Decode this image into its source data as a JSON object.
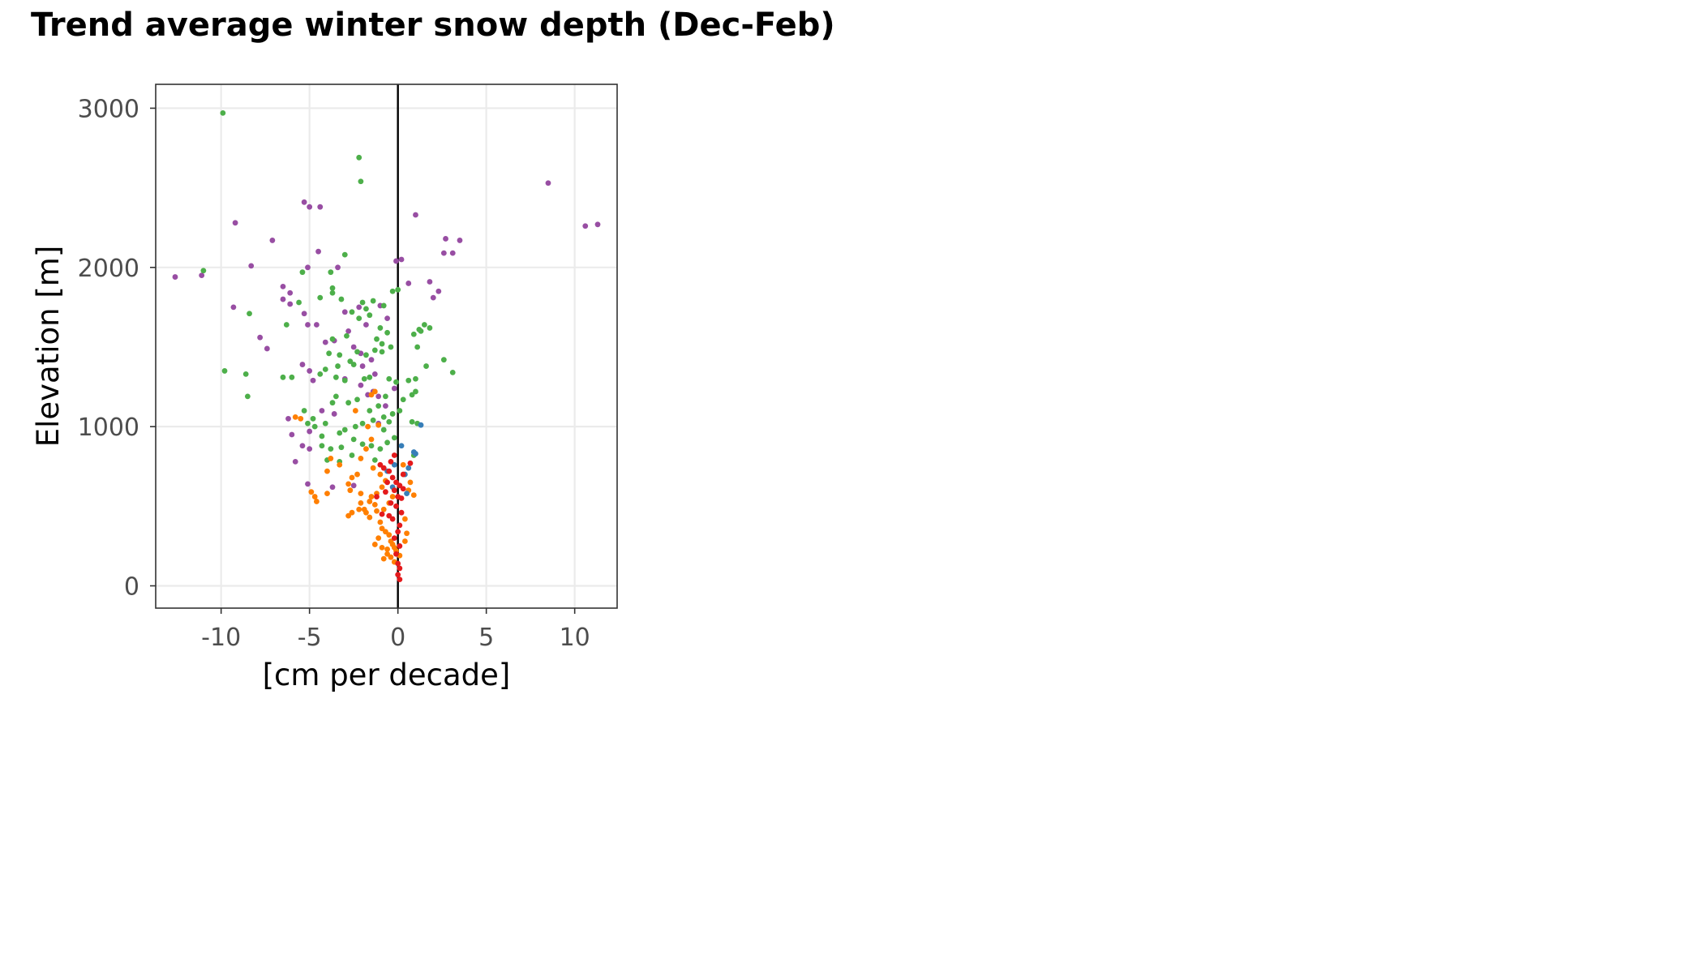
{
  "chart_data": {
    "type": "scatter",
    "title": "Trend average winter snow depth (Dec-Feb)",
    "xlabel": "[cm per decade]",
    "ylabel": "Elevation [m]",
    "xlim": [
      -13.7,
      12.4
    ],
    "ylim": [
      -140,
      3150
    ],
    "xticks": [
      -10,
      -5,
      0,
      5,
      10
    ],
    "yticks": [
      0,
      1000,
      2000,
      3000
    ],
    "grid": true,
    "legend": "none",
    "reference_line_x": 0,
    "series": [
      {
        "color": "#984ea3",
        "points": [
          [
            -12.6,
            1940
          ],
          [
            -11.1,
            1950
          ],
          [
            -9.2,
            2280
          ],
          [
            -7.1,
            2170
          ],
          [
            -5.3,
            2410
          ],
          [
            -5.0,
            2380
          ],
          [
            -4.4,
            2380
          ],
          [
            -4.5,
            2100
          ],
          [
            -3.4,
            2000
          ],
          [
            -5.1,
            2000
          ],
          [
            -8.3,
            2010
          ],
          [
            -9.3,
            1750
          ],
          [
            -7.8,
            1560
          ],
          [
            -7.4,
            1490
          ],
          [
            -6.5,
            1880
          ],
          [
            -6.1,
            1840
          ],
          [
            -6.5,
            1800
          ],
          [
            -6.1,
            1770
          ],
          [
            -5.3,
            1710
          ],
          [
            -5.1,
            1640
          ],
          [
            -4.6,
            1640
          ],
          [
            -4.1,
            1530
          ],
          [
            -2.8,
            1600
          ],
          [
            -3.0,
            1720
          ],
          [
            -2.2,
            1750
          ],
          [
            -1.8,
            1640
          ],
          [
            -3.6,
            1540
          ],
          [
            -2.5,
            1500
          ],
          [
            -2.1,
            1460
          ],
          [
            -1.5,
            1420
          ],
          [
            -1.0,
            1760
          ],
          [
            -0.6,
            1680
          ],
          [
            -0.1,
            2040
          ],
          [
            0.2,
            2050
          ],
          [
            1.0,
            2330
          ],
          [
            2.7,
            2180
          ],
          [
            3.5,
            2170
          ],
          [
            2.6,
            2090
          ],
          [
            3.1,
            2090
          ],
          [
            1.8,
            1910
          ],
          [
            2.3,
            1850
          ],
          [
            2.0,
            1810
          ],
          [
            0.6,
            1900
          ],
          [
            8.5,
            2530
          ],
          [
            10.6,
            2260
          ],
          [
            11.3,
            2270
          ],
          [
            -5.4,
            1390
          ],
          [
            -5.0,
            1350
          ],
          [
            -4.8,
            1290
          ],
          [
            -3.0,
            1300
          ],
          [
            -2.1,
            1260
          ],
          [
            -1.4,
            1220
          ],
          [
            -1.1,
            1190
          ],
          [
            -0.2,
            1240
          ],
          [
            -0.7,
            1130
          ],
          [
            -4.3,
            1100
          ],
          [
            -3.6,
            1080
          ],
          [
            -5.0,
            970
          ],
          [
            -6.0,
            950
          ],
          [
            -5.4,
            880
          ],
          [
            -5.0,
            860
          ],
          [
            -5.8,
            780
          ],
          [
            -5.1,
            640
          ],
          [
            -3.7,
            620
          ],
          [
            -2.5,
            630
          ],
          [
            -1.7,
            1200
          ],
          [
            -1.1,
            1020
          ],
          [
            -6.2,
            1050
          ],
          [
            -2.0,
            1380
          ],
          [
            -1.3,
            1330
          ]
        ]
      },
      {
        "color": "#4daf4a",
        "points": [
          [
            -9.9,
            2970
          ],
          [
            -2.2,
            2690
          ],
          [
            -2.1,
            2540
          ],
          [
            -11.0,
            1980
          ],
          [
            -9.8,
            1350
          ],
          [
            -8.6,
            1330
          ],
          [
            -8.4,
            1710
          ],
          [
            -8.5,
            1190
          ],
          [
            -6.3,
            1640
          ],
          [
            -6.0,
            1310
          ],
          [
            -6.5,
            1310
          ],
          [
            -5.4,
            1970
          ],
          [
            -5.6,
            1780
          ],
          [
            -3.0,
            2080
          ],
          [
            -3.8,
            1970
          ],
          [
            -3.7,
            1870
          ],
          [
            -3.7,
            1840
          ],
          [
            -4.4,
            1810
          ],
          [
            -3.2,
            1800
          ],
          [
            -2.0,
            1780
          ],
          [
            -1.8,
            1740
          ],
          [
            -1.4,
            1790
          ],
          [
            -0.8,
            1760
          ],
          [
            -0.3,
            1850
          ],
          [
            0.0,
            1860
          ],
          [
            -2.6,
            1720
          ],
          [
            -2.2,
            1680
          ],
          [
            -1.6,
            1700
          ],
          [
            -1.0,
            1620
          ],
          [
            -0.6,
            1590
          ],
          [
            -2.9,
            1570
          ],
          [
            -3.7,
            1550
          ],
          [
            -3.9,
            1460
          ],
          [
            -3.3,
            1450
          ],
          [
            -2.7,
            1410
          ],
          [
            -2.5,
            1390
          ],
          [
            -1.8,
            1450
          ],
          [
            -1.3,
            1480
          ],
          [
            -0.9,
            1470
          ],
          [
            -0.4,
            1500
          ],
          [
            -3.4,
            1380
          ],
          [
            -4.1,
            1360
          ],
          [
            -4.4,
            1330
          ],
          [
            -3.5,
            1310
          ],
          [
            -3.0,
            1290
          ],
          [
            -1.6,
            1310
          ],
          [
            -0.5,
            1300
          ],
          [
            -0.1,
            1280
          ],
          [
            0.6,
            1290
          ],
          [
            1.0,
            1300
          ],
          [
            0.8,
            1200
          ],
          [
            0.3,
            1170
          ],
          [
            0.1,
            1100
          ],
          [
            0.8,
            1030
          ],
          [
            1.1,
            1020
          ],
          [
            -0.3,
            1080
          ],
          [
            -0.8,
            1060
          ],
          [
            -1.4,
            1040
          ],
          [
            -2.0,
            1020
          ],
          [
            -2.4,
            1000
          ],
          [
            -3.0,
            980
          ],
          [
            -3.3,
            960
          ],
          [
            -4.1,
            1020
          ],
          [
            -4.8,
            1050
          ],
          [
            -5.3,
            1100
          ],
          [
            -5.1,
            1020
          ],
          [
            -4.7,
            1000
          ],
          [
            -2.8,
            1150
          ],
          [
            -2.3,
            1170
          ],
          [
            -1.6,
            1100
          ],
          [
            -1.1,
            1130
          ],
          [
            -0.7,
            1190
          ],
          [
            -3.7,
            1150
          ],
          [
            -2.5,
            920
          ],
          [
            -2.0,
            890
          ],
          [
            -1.5,
            880
          ],
          [
            -1.0,
            860
          ],
          [
            -3.2,
            870
          ],
          [
            -3.8,
            860
          ],
          [
            -4.3,
            880
          ],
          [
            -4.0,
            790
          ],
          [
            -2.6,
            820
          ],
          [
            -0.6,
            900
          ],
          [
            -0.2,
            930
          ],
          [
            0.9,
            820
          ],
          [
            1.1,
            1500
          ],
          [
            1.3,
            1600
          ],
          [
            1.5,
            1640
          ],
          [
            1.8,
            1620
          ],
          [
            1.2,
            1610
          ],
          [
            0.9,
            1580
          ],
          [
            2.6,
            1420
          ],
          [
            3.1,
            1340
          ],
          [
            1.6,
            1380
          ],
          [
            1.0,
            1220
          ],
          [
            -1.2,
            1550
          ],
          [
            -0.9,
            1520
          ],
          [
            -2.3,
            1470
          ],
          [
            -1.9,
            1300
          ],
          [
            -0.5,
            1030
          ],
          [
            -3.5,
            1190
          ],
          [
            -4.3,
            940
          ],
          [
            -3.3,
            780
          ],
          [
            -1.3,
            790
          ],
          [
            -0.8,
            980
          ]
        ]
      },
      {
        "color": "#ff7f00",
        "points": [
          [
            -5.8,
            1060
          ],
          [
            -5.5,
            1050
          ],
          [
            -4.9,
            590
          ],
          [
            -4.7,
            560
          ],
          [
            -4.6,
            530
          ],
          [
            -4.0,
            580
          ],
          [
            -4.0,
            720
          ],
          [
            -3.8,
            800
          ],
          [
            -3.3,
            760
          ],
          [
            -2.8,
            640
          ],
          [
            -2.7,
            600
          ],
          [
            -2.8,
            440
          ],
          [
            -2.3,
            700
          ],
          [
            -2.1,
            580
          ],
          [
            -2.1,
            520
          ],
          [
            -1.9,
            480
          ],
          [
            -1.8,
            460
          ],
          [
            -1.6,
            430
          ],
          [
            -1.5,
            560
          ],
          [
            -1.3,
            510
          ],
          [
            -1.2,
            470
          ],
          [
            -1.0,
            400
          ],
          [
            -0.9,
            360
          ],
          [
            -0.7,
            340
          ],
          [
            -0.5,
            320
          ],
          [
            -0.4,
            280
          ],
          [
            -0.3,
            260
          ],
          [
            -0.2,
            240
          ],
          [
            -0.1,
            220
          ],
          [
            -0.6,
            200
          ],
          [
            -0.8,
            170
          ],
          [
            -0.2,
            150
          ],
          [
            0.1,
            190
          ],
          [
            0.4,
            280
          ],
          [
            0.5,
            330
          ],
          [
            0.4,
            420
          ],
          [
            0.6,
            600
          ],
          [
            0.7,
            650
          ],
          [
            0.9,
            570
          ],
          [
            0.3,
            760
          ],
          [
            -1.1,
            1010
          ],
          [
            -1.5,
            920
          ],
          [
            -1.8,
            860
          ],
          [
            -2.1,
            800
          ],
          [
            -1.4,
            740
          ],
          [
            -1.0,
            700
          ],
          [
            -0.7,
            660
          ],
          [
            -0.9,
            620
          ],
          [
            -1.2,
            580
          ],
          [
            -1.6,
            530
          ],
          [
            -2.2,
            480
          ],
          [
            -2.6,
            460
          ],
          [
            -0.5,
            520
          ],
          [
            -0.3,
            560
          ],
          [
            -0.8,
            480
          ],
          [
            -1.1,
            300
          ],
          [
            -1.3,
            260
          ],
          [
            -0.9,
            240
          ],
          [
            -0.6,
            230
          ],
          [
            -0.4,
            180
          ],
          [
            -1.5,
            1200
          ],
          [
            -1.3,
            1220
          ],
          [
            -2.4,
            1100
          ],
          [
            -1.7,
            1000
          ],
          [
            -2.6,
            680
          ]
        ]
      },
      {
        "color": "#377eb8",
        "points": [
          [
            1.3,
            1010
          ],
          [
            0.9,
            840
          ],
          [
            1.0,
            830
          ],
          [
            0.6,
            740
          ],
          [
            0.4,
            700
          ],
          [
            0.2,
            880
          ],
          [
            0.5,
            580
          ],
          [
            -0.2,
            760
          ],
          [
            -0.3,
            620
          ],
          [
            -0.6,
            720
          ]
        ]
      },
      {
        "color": "#e41a1c",
        "points": [
          [
            0.1,
            40
          ],
          [
            0.0,
            70
          ],
          [
            0.1,
            110
          ],
          [
            0.0,
            140
          ],
          [
            -0.1,
            200
          ],
          [
            0.1,
            250
          ],
          [
            -0.2,
            300
          ],
          [
            0.0,
            340
          ],
          [
            0.1,
            380
          ],
          [
            -0.3,
            420
          ],
          [
            -0.5,
            440
          ],
          [
            0.2,
            460
          ],
          [
            -0.1,
            500
          ],
          [
            -0.4,
            520
          ],
          [
            0.0,
            560
          ],
          [
            -0.2,
            600
          ],
          [
            0.1,
            630
          ],
          [
            -0.6,
            650
          ],
          [
            -0.3,
            680
          ],
          [
            0.3,
            700
          ],
          [
            -0.5,
            720
          ],
          [
            -0.8,
            740
          ],
          [
            -1.0,
            760
          ],
          [
            -0.4,
            780
          ],
          [
            0.7,
            770
          ],
          [
            -0.2,
            820
          ],
          [
            -1.2,
            560
          ],
          [
            -0.7,
            590
          ],
          [
            0.3,
            610
          ],
          [
            -0.9,
            450
          ],
          [
            0.2,
            550
          ],
          [
            -0.1,
            650
          ]
        ]
      }
    ]
  }
}
